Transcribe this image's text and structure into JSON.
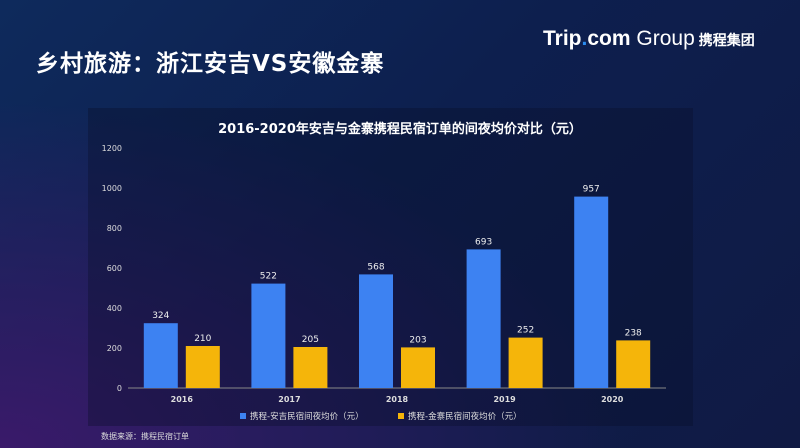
{
  "header": {
    "title": "乡村旅游：浙江安吉VS安徽金寨",
    "logo_text": "Trip.com Group",
    "logo_cn": "携程集团"
  },
  "source": "数据来源：携程民宿订单",
  "chart_data": {
    "type": "bar",
    "title": "2016-2020年安吉与金寨携程民宿订单的间夜均价对比（元）",
    "categories": [
      "2016",
      "2017",
      "2018",
      "2019",
      "2020"
    ],
    "series": [
      {
        "name": "携程-安吉民宿间夜均价（元）",
        "values": [
          324,
          522,
          568,
          693,
          957
        ],
        "color": "#3d82f2"
      },
      {
        "name": "携程-金寨民宿间夜均价（元）",
        "values": [
          210,
          205,
          203,
          252,
          238
        ],
        "color": "#f5b50a"
      }
    ],
    "ylim": [
      0,
      1200
    ],
    "yticks": [
      0,
      200,
      400,
      600,
      800,
      1000,
      1200
    ],
    "grid": false,
    "legend": "bottom",
    "data_labels": true
  }
}
